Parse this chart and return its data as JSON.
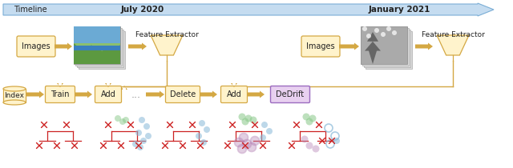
{
  "timeline_label": "Timeline",
  "date1": "July 2020",
  "date2": "January 2021",
  "box_fc": "#FFF3CC",
  "box_ec": "#D4A843",
  "arrow_fc": "#D4A843",
  "timeline_fc": "#C5DCF0",
  "timeline_ec": "#7AAED6",
  "dedrift_fc": "#E8D0F0",
  "dedrift_ec": "#9B6BBF",
  "red": "#CC2222",
  "blue_dot": "#88B8D8",
  "green_dot": "#88C888",
  "purple_dot": "#B888B8",
  "teal_dot": "#88C8C8",
  "pink_dot": "#D888A8"
}
